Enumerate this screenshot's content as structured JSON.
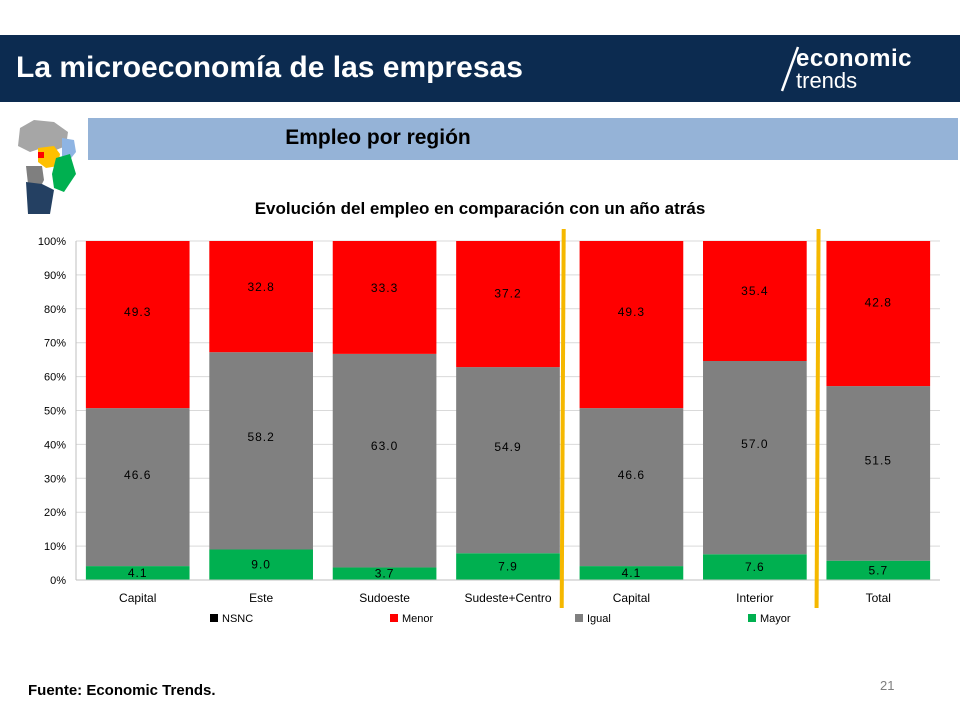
{
  "header": {
    "title": "La microeconomía de las empresas"
  },
  "logo": {
    "line1": "economic",
    "line2": "trends"
  },
  "section": {
    "title": "Empleo por región"
  },
  "footer": {
    "source": "Fuente: Economic Trends.",
    "page_number": "21"
  },
  "chart_data": {
    "type": "bar",
    "stacked": true,
    "percent_stacked": true,
    "title": "Evolución del empleo en comparación con un año atrás",
    "xlabel": "",
    "ylabel": "",
    "ylim": [
      0,
      100
    ],
    "y_ticks": [
      "0%",
      "10%",
      "20%",
      "30%",
      "40%",
      "50%",
      "60%",
      "70%",
      "80%",
      "90%",
      "100%"
    ],
    "categories": [
      "Capital",
      "Este",
      "Sudoeste",
      "Sudeste+Centro",
      "Capital",
      "Interior",
      "Total"
    ],
    "series": [
      {
        "name": "NSNC",
        "color": "#000000",
        "values": [
          0,
          0,
          0,
          0,
          0,
          0,
          0
        ]
      },
      {
        "name": "Mayor",
        "color": "#00b050",
        "values": [
          4.1,
          9.0,
          3.7,
          7.9,
          4.1,
          7.6,
          5.7
        ]
      },
      {
        "name": "Igual",
        "color": "#808080",
        "values": [
          46.6,
          58.2,
          63.0,
          54.9,
          46.6,
          57.0,
          51.5
        ]
      },
      {
        "name": "Menor",
        "color": "#ff0000",
        "values": [
          49.3,
          32.8,
          33.3,
          37.2,
          49.3,
          35.4,
          42.8
        ]
      }
    ],
    "legend_order": [
      "NSNC",
      "Menor",
      "Igual",
      "Mayor"
    ],
    "legend_position": "bottom",
    "grid": true,
    "separator_color": "#f5b800"
  }
}
